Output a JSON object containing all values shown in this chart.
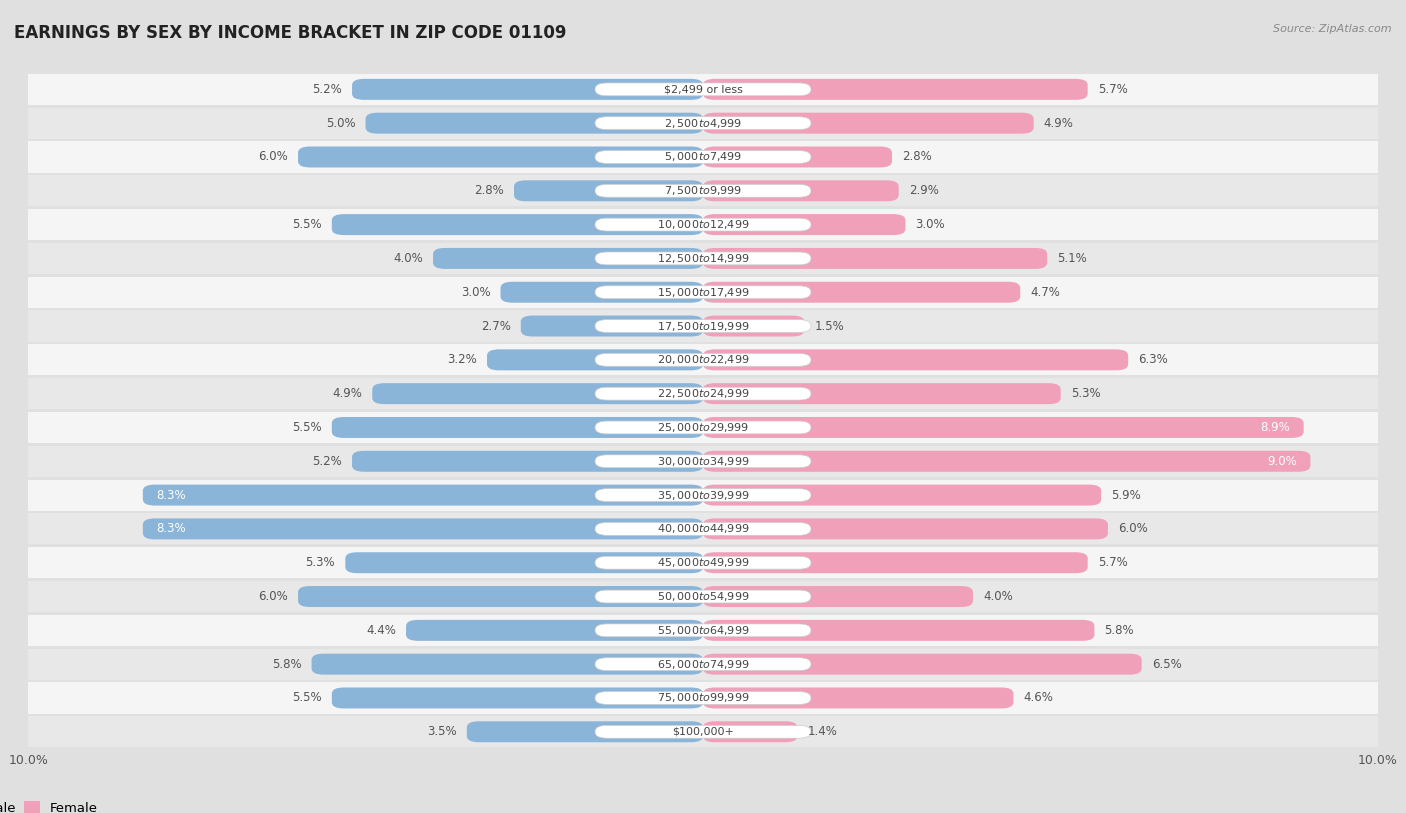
{
  "title": "EARNINGS BY SEX BY INCOME BRACKET IN ZIP CODE 01109",
  "source": "Source: ZipAtlas.com",
  "categories": [
    "$2,499 or less",
    "$2,500 to $4,999",
    "$5,000 to $7,499",
    "$7,500 to $9,999",
    "$10,000 to $12,499",
    "$12,500 to $14,999",
    "$15,000 to $17,499",
    "$17,500 to $19,999",
    "$20,000 to $22,499",
    "$22,500 to $24,999",
    "$25,000 to $29,999",
    "$30,000 to $34,999",
    "$35,000 to $39,999",
    "$40,000 to $44,999",
    "$45,000 to $49,999",
    "$50,000 to $54,999",
    "$55,000 to $64,999",
    "$65,000 to $74,999",
    "$75,000 to $99,999",
    "$100,000+"
  ],
  "male_values": [
    5.2,
    5.0,
    6.0,
    2.8,
    5.5,
    4.0,
    3.0,
    2.7,
    3.2,
    4.9,
    5.5,
    5.2,
    8.3,
    8.3,
    5.3,
    6.0,
    4.4,
    5.8,
    5.5,
    3.5
  ],
  "female_values": [
    5.7,
    4.9,
    2.8,
    2.9,
    3.0,
    5.1,
    4.7,
    1.5,
    6.3,
    5.3,
    8.9,
    9.0,
    5.9,
    6.0,
    5.7,
    4.0,
    5.8,
    6.5,
    4.6,
    1.4
  ],
  "male_color": "#8ab4d8",
  "female_color": "#f0a0b8",
  "axis_max": 10.0,
  "row_color_odd": "#e8e8e8",
  "row_color_even": "#f5f5f5",
  "bar_gap_color": "#d0d0d0",
  "background_color": "#e0e0e0",
  "title_fontsize": 12,
  "source_fontsize": 8,
  "label_fontsize": 9,
  "category_fontsize": 8,
  "value_fontsize": 8.5
}
